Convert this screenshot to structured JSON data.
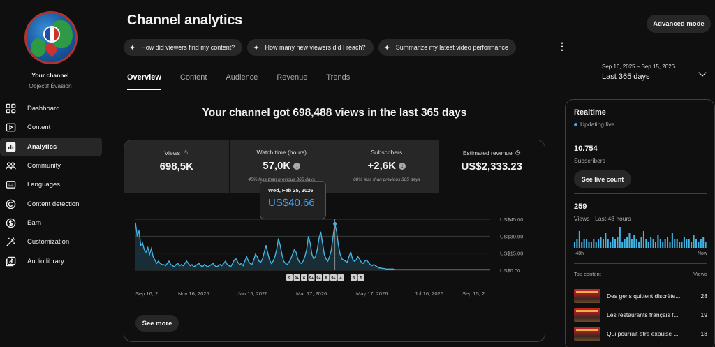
{
  "sidebar": {
    "channel_label": "Your channel",
    "channel_name": "Objectif Évasion",
    "items": [
      {
        "label": "Dashboard",
        "icon": "dashboard-icon"
      },
      {
        "label": "Content",
        "icon": "content-icon"
      },
      {
        "label": "Analytics",
        "icon": "analytics-icon"
      },
      {
        "label": "Community",
        "icon": "community-icon"
      },
      {
        "label": "Languages",
        "icon": "languages-icon"
      },
      {
        "label": "Content detection",
        "icon": "copyright-icon"
      },
      {
        "label": "Earn",
        "icon": "dollar-icon"
      },
      {
        "label": "Customization",
        "icon": "magic-wand-icon"
      },
      {
        "label": "Audio library",
        "icon": "audio-library-icon"
      }
    ],
    "active_item": "Analytics"
  },
  "header": {
    "title": "Channel analytics",
    "advanced_mode": "Advanced mode",
    "chips": [
      "How did viewers find my content?",
      "How many new viewers did I reach?",
      "Summarize my latest video performance"
    ],
    "tabs": [
      "Overview",
      "Content",
      "Audience",
      "Revenue",
      "Trends"
    ],
    "active_tab": "Overview",
    "date_range_sub": "Sep 16, 2025 – Sep 15, 2026",
    "date_range_main": "Last 365 days"
  },
  "overview": {
    "headline": "Your channel got 698,488 views in the last 365 days",
    "metrics": [
      {
        "label": "Views",
        "value": "698,5K",
        "note": ""
      },
      {
        "label": "Watch time (hours)",
        "value": "57,0K",
        "note": "45% less than previous 365 days"
      },
      {
        "label": "Subscribers",
        "value": "+2,6K",
        "note": "68% less than previous 365 days"
      },
      {
        "label": "Estimated revenue",
        "value": "US$2,333.23",
        "note": ""
      }
    ],
    "tooltip_date": "Wed, Feb 25, 2026",
    "tooltip_value": "US$40.66",
    "see_more": "See more"
  },
  "chart_data": {
    "type": "area",
    "series": [
      {
        "name": "Estimated revenue",
        "color": "#41b6e6"
      }
    ],
    "x_tick_labels": [
      "Sep 16, 2...",
      "Nov 16, 2025",
      "Jan 15, 2026",
      "Mar 17, 2026",
      "May 17, 2026",
      "Jul 16, 2026",
      "Sep 15, 2..."
    ],
    "y_tick_labels": [
      "US$45.00",
      "US$30.00",
      "US$15.00",
      "US$0.00"
    ],
    "ylim": [
      0,
      45
    ],
    "values": [
      42,
      30,
      35,
      22,
      24,
      18,
      16,
      20,
      14,
      19,
      12,
      9,
      6,
      8,
      6,
      5,
      5,
      4,
      6,
      8,
      5,
      4,
      3,
      5,
      6,
      4,
      5,
      4,
      6,
      8,
      6,
      4,
      5,
      3,
      4,
      5,
      6,
      4,
      3,
      5,
      4,
      3,
      4,
      5,
      6,
      4,
      3,
      4,
      5,
      4,
      6,
      8,
      5,
      4,
      3,
      6,
      9,
      10,
      7,
      5,
      6,
      4,
      8,
      12,
      8,
      6,
      5,
      9,
      14,
      12,
      8,
      7,
      10,
      16,
      22,
      15,
      9,
      6,
      8,
      12,
      18,
      28,
      22,
      14,
      8,
      6,
      5,
      7,
      10,
      14,
      18,
      16,
      10,
      7,
      6,
      8,
      12,
      18,
      30,
      24,
      14,
      10,
      12,
      18,
      28,
      34,
      24,
      14,
      10,
      8,
      12,
      18,
      30,
      41,
      34,
      22,
      14,
      10,
      9,
      8,
      7,
      12,
      16,
      10,
      8,
      9,
      12,
      10,
      7,
      6,
      8,
      9,
      7,
      5,
      4,
      5,
      4,
      3,
      2,
      2,
      1.5,
      1.5,
      1,
      1,
      1,
      1,
      1,
      0.5,
      0.5,
      0.5,
      0.5,
      0.5,
      0.5,
      0.5,
      0.5,
      0.5,
      0.5,
      0.5,
      0.5,
      0.5,
      0.5,
      0.5,
      0.5,
      0.5,
      0.5,
      0.5,
      0.5,
      0.5,
      0.5,
      0.5,
      0.5,
      0.5,
      0.5,
      0.5,
      0.5,
      0.5,
      0.5,
      0.5,
      0.5,
      0.5,
      0.5,
      0.5,
      0.5,
      0.5,
      0.5,
      0.5,
      0.5,
      0.5,
      0.5,
      0.5,
      0.5,
      0.5,
      0.5,
      0.5,
      0.5,
      0.5,
      0.5,
      0.5,
      0.5,
      0.5,
      0.5,
      0.5
    ],
    "highlight_index": 113,
    "marker_labels": [
      "9",
      "9+",
      "6",
      "9+",
      "9+",
      "8",
      "9+",
      "4",
      "3",
      "5"
    ]
  },
  "realtime": {
    "title": "Realtime",
    "status": "Updating live",
    "subscribers": "10.754",
    "subscribers_label": "Subscribers",
    "see_live": "See live count",
    "views": "259",
    "views_label": "Views · Last 48 hours",
    "axis_start": "-48h",
    "axis_end": "Now",
    "bars": [
      3,
      4,
      8,
      3,
      4,
      4,
      3,
      3,
      4,
      3,
      4,
      5,
      4,
      7,
      4,
      3,
      5,
      4,
      5,
      10,
      3,
      4,
      5,
      7,
      4,
      6,
      4,
      3,
      5,
      8,
      4,
      3,
      5,
      4,
      3,
      6,
      4,
      3,
      4,
      5,
      3,
      7,
      4,
      4,
      3,
      3,
      5,
      4,
      4,
      3,
      6,
      4,
      3,
      4,
      5,
      3
    ],
    "top_content_label": "Top content",
    "views_col_label": "Views",
    "top_content": [
      {
        "title": "Des gens quittent discrète...",
        "views": "28"
      },
      {
        "title": "Les restaurants français f...",
        "views": "19"
      },
      {
        "title": "Qui pourrait être expulsé ...",
        "views": "18"
      }
    ]
  }
}
